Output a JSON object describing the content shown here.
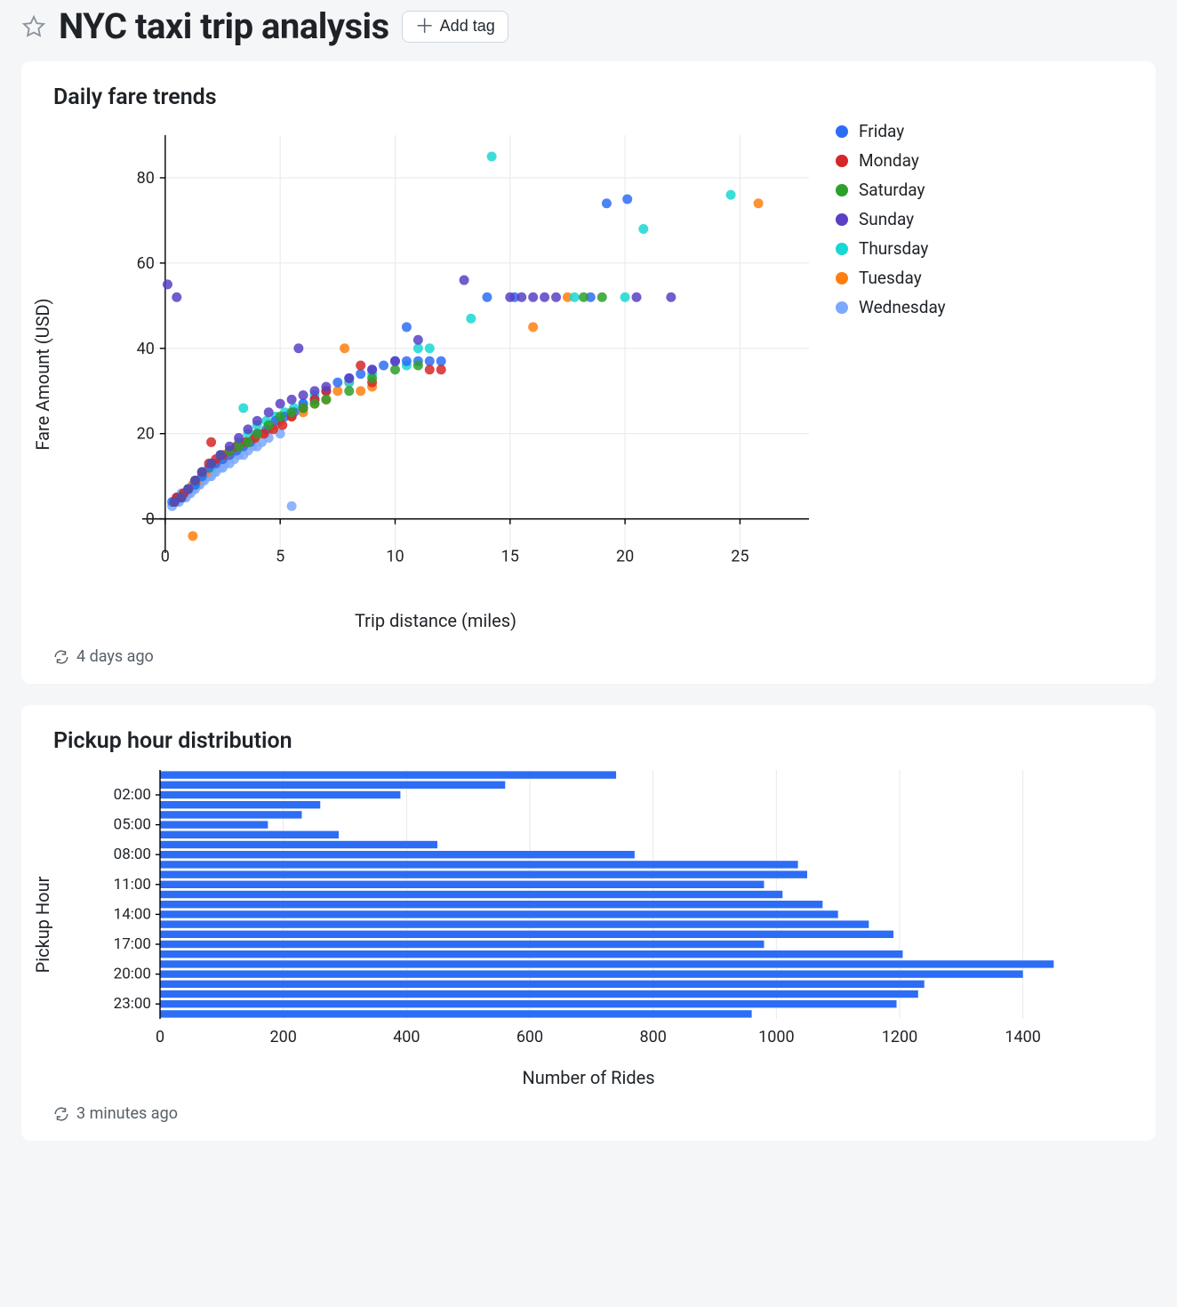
{
  "header": {
    "title": "NYC taxi trip analysis",
    "add_tag_label": "Add tag"
  },
  "scatter_chart": {
    "title": "Daily fare trends",
    "x_label": "Trip distance (miles)",
    "y_label": "Fare Amount (USD)",
    "x_ticks": [
      0,
      5,
      10,
      15,
      20,
      25
    ],
    "y_ticks": [
      0,
      20,
      40,
      60,
      80
    ],
    "xlim": [
      -1,
      28
    ],
    "ylim": [
      -8,
      90
    ],
    "grid_color": "#e6e8eb",
    "axis_color": "#000000",
    "point_radius": 5.5,
    "point_opacity": 0.85,
    "legend": [
      {
        "label": "Friday",
        "color": "#2d6df6"
      },
      {
        "label": "Monday",
        "color": "#d62728"
      },
      {
        "label": "Saturday",
        "color": "#2ca02c"
      },
      {
        "label": "Sunday",
        "color": "#5b3fc4"
      },
      {
        "label": "Thursday",
        "color": "#17d8d2"
      },
      {
        "label": "Tuesday",
        "color": "#ff7f0e"
      },
      {
        "label": "Wednesday",
        "color": "#7da8ff"
      }
    ],
    "colors": {
      "Friday": "#2d6df6",
      "Monday": "#d62728",
      "Saturday": "#2ca02c",
      "Sunday": "#5b3fc4",
      "Thursday": "#17d8d2",
      "Tuesday": "#ff7f0e",
      "Wednesday": "#7da8ff"
    },
    "points": [
      [
        0.3,
        3,
        "W"
      ],
      [
        0.4,
        4,
        "W"
      ],
      [
        0.5,
        4,
        "W"
      ],
      [
        0.5,
        5,
        "W"
      ],
      [
        0.6,
        4,
        "W"
      ],
      [
        0.6,
        5,
        "W"
      ],
      [
        0.7,
        5,
        "W"
      ],
      [
        0.7,
        6,
        "W"
      ],
      [
        0.8,
        5,
        "W"
      ],
      [
        0.8,
        6,
        "W"
      ],
      [
        0.9,
        5,
        "W"
      ],
      [
        0.9,
        6,
        "W"
      ],
      [
        1.0,
        6,
        "W"
      ],
      [
        1.0,
        7,
        "W"
      ],
      [
        1.1,
        6,
        "W"
      ],
      [
        1.1,
        7,
        "W"
      ],
      [
        1.2,
        7,
        "W"
      ],
      [
        1.2,
        8,
        "W"
      ],
      [
        1.3,
        7,
        "W"
      ],
      [
        1.3,
        8,
        "W"
      ],
      [
        1.4,
        8,
        "W"
      ],
      [
        1.5,
        8,
        "W"
      ],
      [
        1.5,
        9,
        "W"
      ],
      [
        1.6,
        9,
        "W"
      ],
      [
        1.7,
        9,
        "W"
      ],
      [
        1.7,
        10,
        "W"
      ],
      [
        1.8,
        10,
        "W"
      ],
      [
        1.9,
        10,
        "W"
      ],
      [
        2.0,
        10,
        "W"
      ],
      [
        2.0,
        11,
        "W"
      ],
      [
        2.1,
        11,
        "W"
      ],
      [
        2.2,
        11,
        "W"
      ],
      [
        2.3,
        12,
        "W"
      ],
      [
        2.4,
        12,
        "W"
      ],
      [
        2.5,
        12,
        "W"
      ],
      [
        2.6,
        13,
        "W"
      ],
      [
        2.8,
        13,
        "W"
      ],
      [
        3.0,
        14,
        "W"
      ],
      [
        3.2,
        15,
        "W"
      ],
      [
        3.4,
        15,
        "W"
      ],
      [
        3.6,
        16,
        "W"
      ],
      [
        3.8,
        17,
        "W"
      ],
      [
        4.0,
        17,
        "W"
      ],
      [
        4.2,
        18,
        "W"
      ],
      [
        4.5,
        19,
        "W"
      ],
      [
        5.0,
        20,
        "W"
      ],
      [
        5.5,
        3,
        "W"
      ],
      [
        0.4,
        4,
        "Tu"
      ],
      [
        0.5,
        5,
        "Tu"
      ],
      [
        0.7,
        5,
        "Tu"
      ],
      [
        0.8,
        6,
        "Tu"
      ],
      [
        1.0,
        7,
        "Tu"
      ],
      [
        1.2,
        8,
        "Tu"
      ],
      [
        1.4,
        9,
        "Tu"
      ],
      [
        1.6,
        10,
        "Tu"
      ],
      [
        1.8,
        11,
        "Tu"
      ],
      [
        2.0,
        12,
        "Tu"
      ],
      [
        2.2,
        13,
        "Tu"
      ],
      [
        2.5,
        14,
        "Tu"
      ],
      [
        2.8,
        15,
        "Tu"
      ],
      [
        3.0,
        16,
        "Tu"
      ],
      [
        3.3,
        17,
        "Tu"
      ],
      [
        3.6,
        18,
        "Tu"
      ],
      [
        3.9,
        19,
        "Tu"
      ],
      [
        4.2,
        20,
        "Tu"
      ],
      [
        4.5,
        21,
        "Tu"
      ],
      [
        4.8,
        22,
        "Tu"
      ],
      [
        5.0,
        23,
        "Tu"
      ],
      [
        5.5,
        24,
        "Tu"
      ],
      [
        6.0,
        25,
        "Tu"
      ],
      [
        6.5,
        27,
        "Tu"
      ],
      [
        7.0,
        28,
        "Tu"
      ],
      [
        7.5,
        30,
        "Tu"
      ],
      [
        7.8,
        40,
        "Tu"
      ],
      [
        8.0,
        32,
        "Tu"
      ],
      [
        8.5,
        30,
        "Tu"
      ],
      [
        9.0,
        31,
        "Tu"
      ],
      [
        1.2,
        -4,
        "Tu"
      ],
      [
        16.0,
        45,
        "Tu"
      ],
      [
        25.8,
        74,
        "Tu"
      ],
      [
        17.5,
        52,
        "Tu"
      ],
      [
        0.4,
        4,
        "Th"
      ],
      [
        0.6,
        5,
        "Th"
      ],
      [
        0.8,
        6,
        "Th"
      ],
      [
        1.0,
        7,
        "Th"
      ],
      [
        1.3,
        8,
        "Th"
      ],
      [
        1.6,
        10,
        "Th"
      ],
      [
        2.0,
        12,
        "Th"
      ],
      [
        2.4,
        14,
        "Th"
      ],
      [
        2.8,
        16,
        "Th"
      ],
      [
        3.2,
        18,
        "Th"
      ],
      [
        3.6,
        20,
        "Th"
      ],
      [
        4.0,
        22,
        "Th"
      ],
      [
        4.4,
        23,
        "Th"
      ],
      [
        4.8,
        24,
        "Th"
      ],
      [
        5.2,
        25,
        "Th"
      ],
      [
        5.6,
        26,
        "Th"
      ],
      [
        6.0,
        27,
        "Th"
      ],
      [
        3.4,
        26,
        "Th"
      ],
      [
        6.5,
        29,
        "Th"
      ],
      [
        7.0,
        30,
        "Th"
      ],
      [
        8.0,
        32,
        "Th"
      ],
      [
        9.0,
        34,
        "Th"
      ],
      [
        10.5,
        36,
        "Th"
      ],
      [
        11.0,
        40,
        "Th"
      ],
      [
        11.5,
        40,
        "Th"
      ],
      [
        13.3,
        47,
        "Th"
      ],
      [
        14.2,
        85,
        "Th"
      ],
      [
        17.8,
        52,
        "Th"
      ],
      [
        20.0,
        52,
        "Th"
      ],
      [
        20.8,
        68,
        "Th"
      ],
      [
        24.6,
        76,
        "Th"
      ],
      [
        0.3,
        4,
        "F"
      ],
      [
        0.5,
        5,
        "F"
      ],
      [
        0.8,
        6,
        "F"
      ],
      [
        1.0,
        7,
        "F"
      ],
      [
        1.3,
        8,
        "F"
      ],
      [
        1.6,
        10,
        "F"
      ],
      [
        1.9,
        12,
        "F"
      ],
      [
        2.2,
        13,
        "F"
      ],
      [
        2.5,
        14,
        "F"
      ],
      [
        2.8,
        15,
        "F"
      ],
      [
        3.1,
        16,
        "F"
      ],
      [
        3.4,
        17,
        "F"
      ],
      [
        3.7,
        18,
        "F"
      ],
      [
        4.0,
        20,
        "F"
      ],
      [
        4.4,
        21,
        "F"
      ],
      [
        4.8,
        23,
        "F"
      ],
      [
        5.2,
        24,
        "F"
      ],
      [
        5.6,
        25,
        "F"
      ],
      [
        6.0,
        27,
        "F"
      ],
      [
        6.5,
        28,
        "F"
      ],
      [
        7.0,
        30,
        "F"
      ],
      [
        7.5,
        32,
        "F"
      ],
      [
        8.0,
        33,
        "F"
      ],
      [
        8.5,
        34,
        "F"
      ],
      [
        9.0,
        35,
        "F"
      ],
      [
        9.5,
        36,
        "F"
      ],
      [
        10.0,
        37,
        "F"
      ],
      [
        10.5,
        37,
        "F"
      ],
      [
        11.0,
        37,
        "F"
      ],
      [
        11.5,
        37,
        "F"
      ],
      [
        12.0,
        37,
        "F"
      ],
      [
        10.5,
        45,
        "F"
      ],
      [
        14.0,
        52,
        "F"
      ],
      [
        15.2,
        52,
        "F"
      ],
      [
        18.5,
        52,
        "F"
      ],
      [
        19.2,
        74,
        "F"
      ],
      [
        20.1,
        75,
        "F"
      ],
      [
        0.5,
        5,
        "M"
      ],
      [
        0.8,
        6,
        "M"
      ],
      [
        1.0,
        7,
        "M"
      ],
      [
        1.3,
        9,
        "M"
      ],
      [
        1.6,
        11,
        "M"
      ],
      [
        1.9,
        13,
        "M"
      ],
      [
        2.0,
        18,
        "M"
      ],
      [
        2.2,
        14,
        "M"
      ],
      [
        2.5,
        15,
        "M"
      ],
      [
        2.8,
        16,
        "M"
      ],
      [
        3.1,
        17,
        "M"
      ],
      [
        3.5,
        18,
        "M"
      ],
      [
        3.9,
        19,
        "M"
      ],
      [
        4.3,
        20,
        "M"
      ],
      [
        4.7,
        21,
        "M"
      ],
      [
        5.1,
        22,
        "M"
      ],
      [
        5.5,
        24,
        "M"
      ],
      [
        6.0,
        26,
        "M"
      ],
      [
        6.5,
        28,
        "M"
      ],
      [
        7.0,
        30,
        "M"
      ],
      [
        8.5,
        36,
        "M"
      ],
      [
        9.0,
        32,
        "M"
      ],
      [
        11.5,
        35,
        "M"
      ],
      [
        12.0,
        35,
        "M"
      ],
      [
        0.4,
        4,
        "Sa"
      ],
      [
        0.7,
        5,
        "Sa"
      ],
      [
        1.0,
        7,
        "Sa"
      ],
      [
        1.3,
        9,
        "Sa"
      ],
      [
        1.6,
        11,
        "Sa"
      ],
      [
        2.0,
        13,
        "Sa"
      ],
      [
        2.4,
        15,
        "Sa"
      ],
      [
        2.8,
        16,
        "Sa"
      ],
      [
        3.2,
        17,
        "Sa"
      ],
      [
        3.6,
        18,
        "Sa"
      ],
      [
        4.0,
        20,
        "Sa"
      ],
      [
        4.5,
        22,
        "Sa"
      ],
      [
        5.0,
        24,
        "Sa"
      ],
      [
        5.5,
        25,
        "Sa"
      ],
      [
        6.0,
        26,
        "Sa"
      ],
      [
        6.5,
        27,
        "Sa"
      ],
      [
        7.0,
        28,
        "Sa"
      ],
      [
        8.0,
        30,
        "Sa"
      ],
      [
        9.0,
        33,
        "Sa"
      ],
      [
        10.0,
        35,
        "Sa"
      ],
      [
        11.0,
        36,
        "Sa"
      ],
      [
        18.2,
        52,
        "Sa"
      ],
      [
        19.0,
        52,
        "Sa"
      ],
      [
        0.4,
        4,
        "Su"
      ],
      [
        0.7,
        5,
        "Su"
      ],
      [
        1.0,
        7,
        "Su"
      ],
      [
        0.5,
        52,
        "Su"
      ],
      [
        0.1,
        55,
        "Su"
      ],
      [
        1.3,
        9,
        "Su"
      ],
      [
        1.6,
        11,
        "Su"
      ],
      [
        2.0,
        13,
        "Su"
      ],
      [
        2.4,
        15,
        "Su"
      ],
      [
        2.8,
        17,
        "Su"
      ],
      [
        3.2,
        19,
        "Su"
      ],
      [
        3.6,
        21,
        "Su"
      ],
      [
        4.0,
        23,
        "Su"
      ],
      [
        4.5,
        25,
        "Su"
      ],
      [
        5.0,
        27,
        "Su"
      ],
      [
        5.5,
        28,
        "Su"
      ],
      [
        5.8,
        40,
        "Su"
      ],
      [
        6.0,
        29,
        "Su"
      ],
      [
        6.5,
        30,
        "Su"
      ],
      [
        7.0,
        31,
        "Su"
      ],
      [
        8.0,
        33,
        "Su"
      ],
      [
        9.0,
        35,
        "Su"
      ],
      [
        10.0,
        37,
        "Su"
      ],
      [
        11.0,
        42,
        "Su"
      ],
      [
        13.0,
        56,
        "Su"
      ],
      [
        15.0,
        52,
        "Su"
      ],
      [
        15.5,
        52,
        "Su"
      ],
      [
        16.0,
        52,
        "Su"
      ],
      [
        16.5,
        52,
        "Su"
      ],
      [
        17.0,
        52,
        "Su"
      ],
      [
        20.5,
        52,
        "Su"
      ],
      [
        22.0,
        52,
        "Su"
      ]
    ],
    "day_map": {
      "F": "Friday",
      "M": "Monday",
      "Sa": "Saturday",
      "Su": "Sunday",
      "Th": "Thursday",
      "Tu": "Tuesday",
      "W": "Wednesday"
    },
    "timestamp": "4 days ago"
  },
  "bar_chart": {
    "title": "Pickup hour distribution",
    "x_label": "Number of Rides",
    "y_label": "Pickup Hour",
    "x_ticks": [
      0,
      200,
      400,
      600,
      800,
      1000,
      1200,
      1400
    ],
    "xlim": [
      0,
      1500
    ],
    "y_tick_labels": [
      "02:00",
      "05:00",
      "08:00",
      "11:00",
      "14:00",
      "17:00",
      "20:00",
      "23:00"
    ],
    "y_tick_indices": [
      2,
      5,
      8,
      11,
      14,
      17,
      20,
      23
    ],
    "bar_color": "#2d6df6",
    "grid_color": "#e6e8eb",
    "axis_color": "#000000",
    "bar_gap_ratio": 0.25,
    "values": [
      740,
      560,
      390,
      260,
      230,
      175,
      290,
      450,
      770,
      1035,
      1050,
      980,
      1010,
      1075,
      1100,
      1150,
      1190,
      980,
      1205,
      1450,
      1400,
      1240,
      1230,
      1195,
      960
    ],
    "timestamp": "3 minutes ago"
  }
}
